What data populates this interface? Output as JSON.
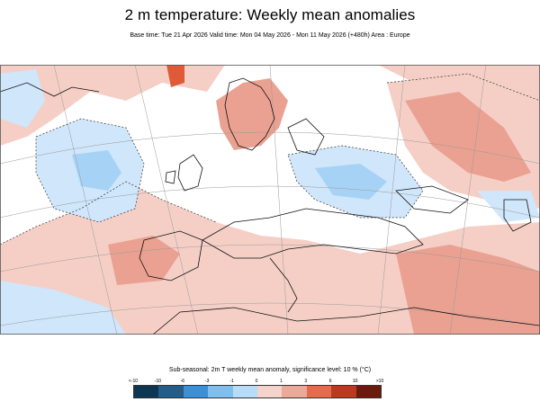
{
  "header": {
    "title": "2 m temperature: Weekly mean anomalies",
    "subtitle": "Base time: Tue 21 Apr 2026 Valid time: Mon 04 May 2026 - Mon 11 May 2026 (+480h) Area : Europe"
  },
  "map": {
    "area": "Europe",
    "colors": {
      "ocean_white": "#ffffff",
      "warm_light": "#f5cfc6",
      "warm_mid": "#eaa191",
      "warm_strong": "#e05a37",
      "cold_light": "#cfe6fb",
      "cold_mid": "#a6d3f5",
      "cold_strong": "#6ab5ec",
      "coast": "#111111",
      "grid": "#999999"
    }
  },
  "legend": {
    "title": "Sub-seasonal: 2m T weekly mean anomaly, significance level: 10 % (°C)",
    "ticks": [
      "<-10",
      "-10",
      "-6",
      "-3",
      "-1",
      "0",
      "1",
      "3",
      "6",
      "10",
      ">10"
    ],
    "colors": [
      "#0d3652",
      "#245c8a",
      "#3d8fd6",
      "#7fbff0",
      "#b7dcf8",
      "#ddeefc",
      "#f5d2ca",
      "#eca898",
      "#e56c4b",
      "#b93a1c",
      "#6b1a0c"
    ]
  }
}
